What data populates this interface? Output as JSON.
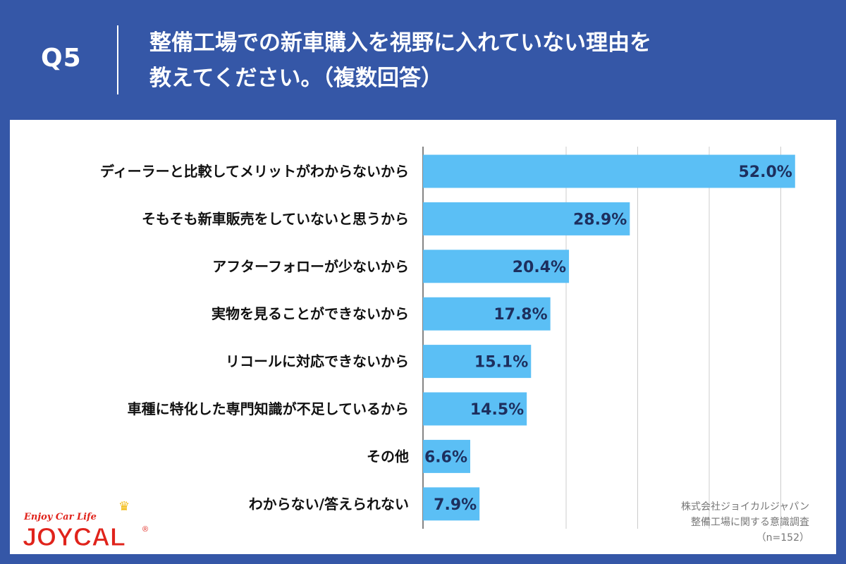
{
  "header": {
    "question_number": "Q5",
    "question_line1": "整備工場での新車購入を視野に入れていない理由を",
    "question_line2": "教えてください。（複数回答）"
  },
  "source": {
    "line1": "株式会社ジョイカルジャパン",
    "line2": "整備工場に関する意識調査",
    "line3": "（n=152）"
  },
  "logo": {
    "tagline": "Enjoy Car Life",
    "wordmark": "JOYCAL",
    "registered": "®"
  },
  "colors": {
    "background": "#3557a7",
    "bar": "#5bbff5",
    "value_text": "#1d2f5e",
    "grid": "#cccccc",
    "logo_red": "#e0231b"
  },
  "chart_data": {
    "type": "bar",
    "orientation": "horizontal",
    "categories": [
      "ディーラーと比較してメリットがわからないから",
      "そもそも新車販売をしていないと思うから",
      "アフターフォローが少ないから",
      "実物を見ることができないから",
      "リコールに対応できないから",
      "車種に特化した専門知識が不足しているから",
      "その他",
      "わからない/答えられない"
    ],
    "values": [
      52.0,
      28.9,
      20.4,
      17.8,
      15.1,
      14.5,
      6.6,
      7.9
    ],
    "value_labels": [
      "52.0%",
      "28.9%",
      "20.4%",
      "17.8%",
      "15.1%",
      "14.5%",
      "6.6%",
      "7.9%"
    ],
    "unit": "%",
    "xlim": [
      0,
      55
    ],
    "gridlines": [
      0,
      20,
      30,
      40,
      50
    ],
    "grid": true,
    "legend": "none"
  }
}
